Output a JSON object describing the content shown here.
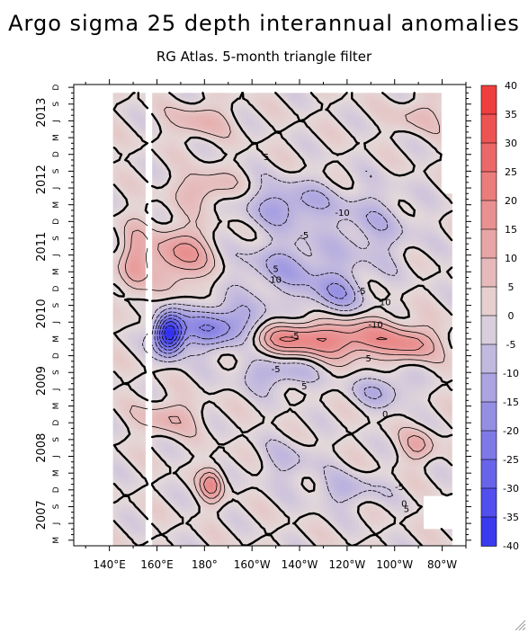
{
  "chart_data": {
    "type": "heatmap",
    "title": "Argo sigma 25 depth interannual anomalies",
    "subtitle": "RG Atlas. 5-month triangle filter",
    "x_tick_labels": [
      "140°E",
      "160°E",
      "180°",
      "160°W",
      "140°W",
      "120°W",
      "100°W",
      "80°W"
    ],
    "x_tick_longitudes_east": [
      140,
      160,
      180,
      200,
      220,
      240,
      260,
      280
    ],
    "xlim_east": [
      125,
      290
    ],
    "y_years": [
      "2007",
      "2008",
      "2009",
      "2010",
      "2011",
      "2012",
      "2013"
    ],
    "y_month_letters": [
      "M",
      "J",
      "S",
      "D"
    ],
    "colorbar": {
      "min": -40,
      "max": 40,
      "step": 5,
      "labels": [
        "40",
        "35",
        "30",
        "25",
        "20",
        "15",
        "10",
        "5",
        "0",
        "-5",
        "-10",
        "-15",
        "-20",
        "-25",
        "-30",
        "-35",
        "-40"
      ],
      "low_color": "#2f2ff2",
      "mid_color": "#e4d9d9",
      "high_color": "#f03434"
    },
    "contour_labels": [
      "5",
      "-10",
      "-5",
      "5",
      "10",
      "-5",
      "-10",
      "-5",
      "5",
      "-5",
      "5",
      "0",
      "10",
      "-5",
      "0",
      "5"
    ],
    "features": [
      {
        "name": "2010 El Nino negative anomaly near 165°E",
        "min": -40
      },
      {
        "name": "2010 positive band 180°–85°W",
        "max": 20
      },
      {
        "name": "2011 positive anomaly 160°E–180°",
        "max": 20
      },
      {
        "name": "2012 negative anomaly central Pacific",
        "min": -15
      }
    ]
  }
}
